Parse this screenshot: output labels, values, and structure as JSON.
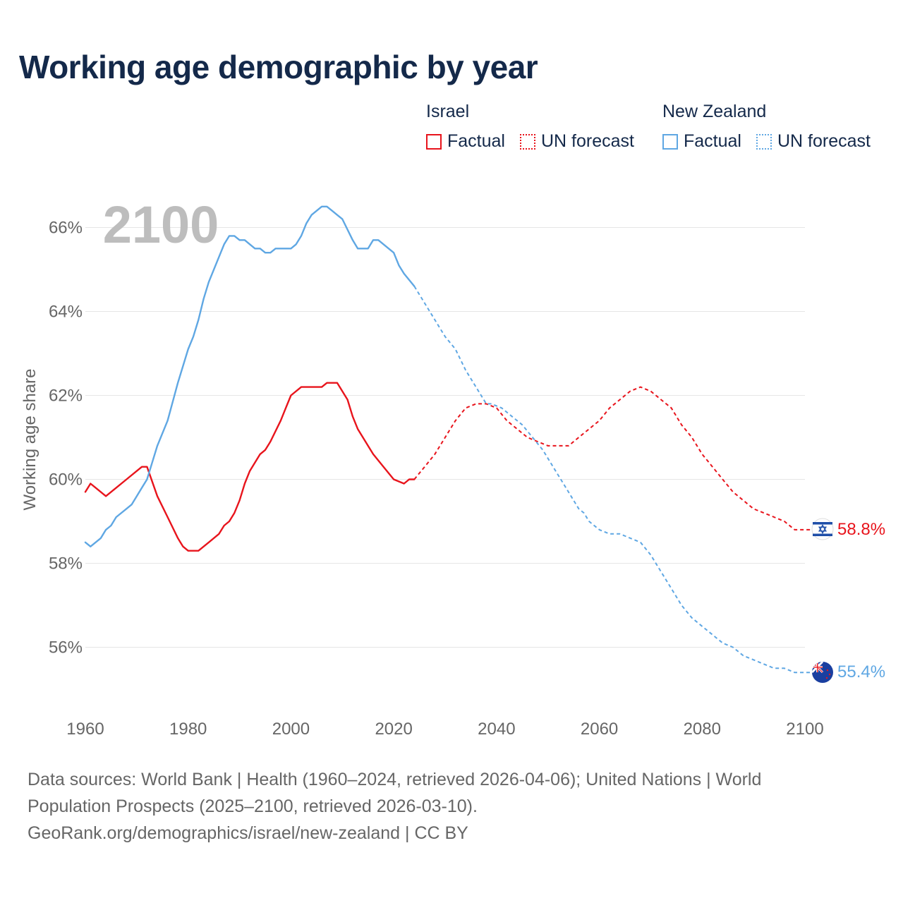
{
  "header": {
    "title": "Working age demographic by year"
  },
  "legend": {
    "groups": [
      {
        "name": "Israel",
        "factual_label": "Factual",
        "forecast_label": "UN forecast"
      },
      {
        "name": "New Zealand",
        "factual_label": "Factual",
        "forecast_label": "UN forecast"
      }
    ]
  },
  "footer": {
    "line1": "Data sources: World Bank | Health (1960–2024, retrieved 2026-04-06); United Nations | World",
    "line2": "Population Prospects (2025–2100, retrieved 2026-03-10).",
    "line3": "GeoRank.org/demographics/israel/new-zealand | CC BY"
  },
  "colors": {
    "israel": "#e8141c",
    "new_zealand": "#5fa7e3",
    "title": "#14294a",
    "axis_text": "#666666",
    "grid": "#e6e6e6",
    "year_watermark": "#bdbdbd"
  },
  "chart_data": {
    "type": "line",
    "title": "Working age demographic by year",
    "xlabel": "",
    "ylabel": "Working age share",
    "year_label": "2100",
    "xlim": [
      1960,
      2100
    ],
    "ylim": [
      55,
      67
    ],
    "x_ticks": [
      1960,
      1980,
      2000,
      2020,
      2040,
      2060,
      2080,
      2100
    ],
    "x_tick_labels": [
      "1960",
      "1980",
      "2000",
      "2020",
      "2040",
      "2060",
      "2080",
      "2100"
    ],
    "y_ticks": [
      56,
      58,
      60,
      62,
      64,
      66
    ],
    "y_tick_labels": [
      "56%",
      "58%",
      "60%",
      "62%",
      "64%",
      "66%"
    ],
    "forecast_start": 2024,
    "series": [
      {
        "name": "Israel",
        "color": "#e8141c",
        "end_label": "58.8%",
        "flag_icon": "israel-flag-icon",
        "factual": {
          "x": [
            1960,
            1961,
            1962,
            1964,
            1966,
            1968,
            1970,
            1971,
            1972,
            1974,
            1976,
            1978,
            1979,
            1980,
            1982,
            1984,
            1986,
            1987,
            1988,
            1989,
            1990,
            1991,
            1992,
            1994,
            1995,
            1996,
            1998,
            1999,
            2000,
            2002,
            2004,
            2006,
            2007,
            2009,
            2011,
            2012,
            2013,
            2014,
            2016,
            2018,
            2020,
            2022,
            2023,
            2024
          ],
          "y": [
            59.7,
            59.9,
            59.8,
            59.6,
            59.8,
            60.0,
            60.2,
            60.3,
            60.3,
            59.6,
            59.1,
            58.6,
            58.4,
            58.3,
            58.3,
            58.5,
            58.7,
            58.9,
            59.0,
            59.2,
            59.5,
            59.9,
            60.2,
            60.6,
            60.7,
            60.9,
            61.4,
            61.7,
            62.0,
            62.2,
            62.2,
            62.2,
            62.3,
            62.3,
            61.9,
            61.5,
            61.2,
            61.0,
            60.6,
            60.3,
            60.0,
            59.9,
            60.0,
            60.0
          ]
        },
        "forecast": {
          "x": [
            2024,
            2026,
            2028,
            2030,
            2032,
            2034,
            2036,
            2038,
            2040,
            2042,
            2044,
            2046,
            2048,
            2050,
            2052,
            2054,
            2056,
            2058,
            2060,
            2062,
            2064,
            2066,
            2068,
            2070,
            2072,
            2074,
            2076,
            2078,
            2080,
            2082,
            2084,
            2086,
            2088,
            2090,
            2092,
            2094,
            2096,
            2098,
            2100,
            2103
          ],
          "y": [
            60.0,
            60.3,
            60.6,
            61.0,
            61.4,
            61.7,
            61.8,
            61.8,
            61.7,
            61.4,
            61.2,
            61.0,
            60.9,
            60.8,
            60.8,
            60.8,
            61.0,
            61.2,
            61.4,
            61.7,
            61.9,
            62.1,
            62.2,
            62.1,
            61.9,
            61.7,
            61.3,
            61.0,
            60.6,
            60.3,
            60.0,
            59.7,
            59.5,
            59.3,
            59.2,
            59.1,
            59.0,
            58.8,
            58.8,
            58.8
          ]
        }
      },
      {
        "name": "New Zealand",
        "color": "#5fa7e3",
        "end_label": "55.4%",
        "flag_icon": "new-zealand-flag-icon",
        "factual": {
          "x": [
            1960,
            1961,
            1963,
            1964,
            1965,
            1966,
            1968,
            1969,
            1970,
            1971,
            1972,
            1973,
            1974,
            1976,
            1978,
            1980,
            1981,
            1982,
            1983,
            1984,
            1986,
            1987,
            1988,
            1989,
            1990,
            1991,
            1992,
            1993,
            1994,
            1995,
            1996,
            1997,
            1998,
            2000,
            2001,
            2002,
            2003,
            2004,
            2005,
            2006,
            2007,
            2008,
            2009,
            2010,
            2012,
            2013,
            2015,
            2016,
            2017,
            2019,
            2020,
            2021,
            2022,
            2024
          ],
          "y": [
            58.5,
            58.4,
            58.6,
            58.8,
            58.9,
            59.1,
            59.3,
            59.4,
            59.6,
            59.8,
            60.0,
            60.4,
            60.8,
            61.4,
            62.3,
            63.1,
            63.4,
            63.8,
            64.3,
            64.7,
            65.3,
            65.6,
            65.8,
            65.8,
            65.7,
            65.7,
            65.6,
            65.5,
            65.5,
            65.4,
            65.4,
            65.5,
            65.5,
            65.5,
            65.6,
            65.8,
            66.1,
            66.3,
            66.4,
            66.5,
            66.5,
            66.4,
            66.3,
            66.2,
            65.7,
            65.5,
            65.5,
            65.7,
            65.7,
            65.5,
            65.4,
            65.1,
            64.9,
            64.6
          ]
        },
        "forecast": {
          "x": [
            2024,
            2026,
            2028,
            2030,
            2032,
            2034,
            2036,
            2038,
            2039,
            2041,
            2043,
            2045,
            2047,
            2049,
            2051,
            2053,
            2055,
            2056,
            2057,
            2058,
            2059,
            2060,
            2062,
            2064,
            2066,
            2068,
            2070,
            2072,
            2074,
            2076,
            2078,
            2080,
            2082,
            2084,
            2086,
            2088,
            2090,
            2092,
            2094,
            2096,
            2098,
            2100,
            2103
          ],
          "y": [
            64.6,
            64.2,
            63.8,
            63.4,
            63.1,
            62.6,
            62.2,
            61.8,
            61.8,
            61.7,
            61.5,
            61.3,
            61.0,
            60.7,
            60.3,
            59.9,
            59.5,
            59.3,
            59.2,
            59.0,
            58.9,
            58.8,
            58.7,
            58.7,
            58.6,
            58.5,
            58.2,
            57.8,
            57.4,
            57.0,
            56.7,
            56.5,
            56.3,
            56.1,
            56.0,
            55.8,
            55.7,
            55.6,
            55.5,
            55.5,
            55.4,
            55.4,
            55.4
          ]
        }
      }
    ]
  }
}
